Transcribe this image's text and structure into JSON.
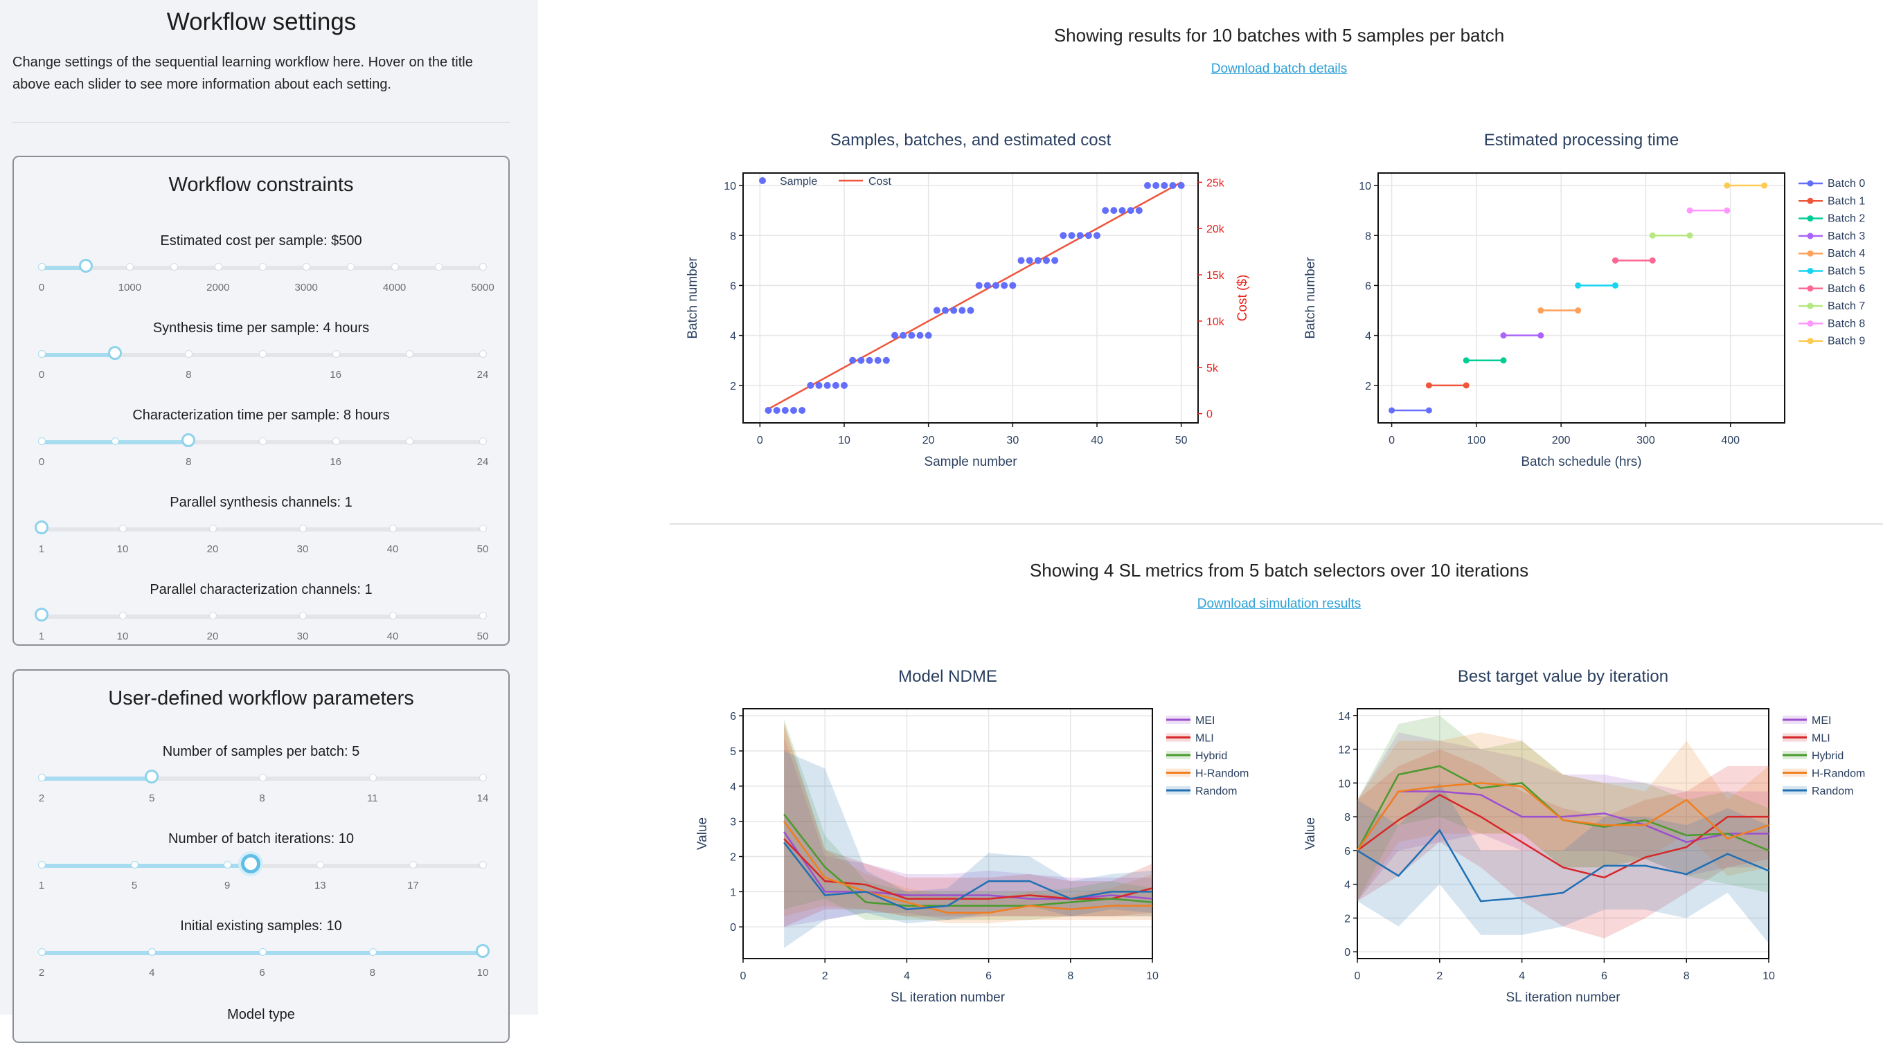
{
  "sidebar": {
    "title": "Workflow settings",
    "intro": "Change settings of the sequential learning workflow here. Hover on the title above each slider to see more information about each setting.",
    "constraints": {
      "title": "Workflow constraints",
      "sliders": [
        {
          "label": "Estimated cost per sample: $500",
          "min": 0,
          "max": 5000,
          "value": 500,
          "marks": [
            "0",
            "1000",
            "2000",
            "3000",
            "4000",
            "5000"
          ],
          "dots": 11
        },
        {
          "label": "Synthesis time per sample: 4 hours",
          "min": 0,
          "max": 24,
          "value": 4,
          "marks": [
            "0",
            "8",
            "16",
            "24"
          ],
          "dots": 7
        },
        {
          "label": "Characterization time per sample: 8 hours",
          "min": 0,
          "max": 24,
          "value": 8,
          "marks": [
            "0",
            "8",
            "16",
            "24"
          ],
          "dots": 7
        },
        {
          "label": "Parallel synthesis channels: 1",
          "min": 1,
          "max": 50,
          "value": 1,
          "marks": [
            "1",
            "10",
            "20",
            "30",
            "40",
            "50"
          ],
          "dots": 6,
          "markvals": [
            1,
            10,
            20,
            30,
            40,
            50
          ]
        },
        {
          "label": "Parallel characterization channels: 1",
          "min": 1,
          "max": 50,
          "value": 1,
          "marks": [
            "1",
            "10",
            "20",
            "30",
            "40",
            "50"
          ],
          "dots": 6,
          "markvals": [
            1,
            10,
            20,
            30,
            40,
            50
          ]
        }
      ]
    },
    "params": {
      "title": "User-defined workflow parameters",
      "sliders": [
        {
          "label": "Number of samples per batch: 5",
          "min": 2,
          "max": 14,
          "value": 5,
          "marks": [
            "2",
            "5",
            "8",
            "11",
            "14"
          ],
          "dots": 5
        },
        {
          "label": "Number of batch iterations: 10",
          "min": 1,
          "max": 20,
          "value": 10,
          "marks": [
            "1",
            "5",
            "9",
            "13",
            "17"
          ],
          "markvals": [
            1,
            5,
            9,
            13,
            17
          ],
          "dotvals": [
            1,
            5,
            9,
            13,
            17,
            20
          ],
          "active": true
        },
        {
          "label": "Initial existing samples: 10",
          "min": 2,
          "max": 10,
          "value": 10,
          "marks": [
            "2",
            "4",
            "6",
            "8",
            "10"
          ],
          "dots": 5
        }
      ],
      "next_label": "Model type"
    }
  },
  "main": {
    "batch_heading": "Showing results for 10 batches with 5 samples per batch",
    "batch_link": "Download batch details",
    "sl_heading": "Showing 4 SL metrics from 5 batch selectors over 10 iterations",
    "sl_link": "Download simulation results"
  },
  "chart_data": [
    {
      "type": "scatter",
      "title": "Samples, batches, and estimated cost",
      "xlabel": "Sample number",
      "ylabel": "Batch number",
      "y2label": "Cost ($)",
      "xlim": [
        -2,
        52
      ],
      "ylim": [
        0.5,
        10.5
      ],
      "y2lim": [
        -1000,
        26000
      ],
      "xticks": [
        0,
        10,
        20,
        30,
        40,
        50
      ],
      "yticks": [
        2,
        4,
        6,
        8,
        10
      ],
      "y2ticks": [
        0,
        5000,
        10000,
        15000,
        20000,
        25000
      ],
      "y2ticklabels": [
        "0",
        "5k",
        "10k",
        "15k",
        "20k",
        "25k"
      ],
      "legend_position": "top-left",
      "series": [
        {
          "name": "Sample",
          "color": "#636efa",
          "kind": "markers",
          "x": [
            1,
            2,
            3,
            4,
            5,
            6,
            7,
            8,
            9,
            10,
            11,
            12,
            13,
            14,
            15,
            16,
            17,
            18,
            19,
            20,
            21,
            22,
            23,
            24,
            25,
            26,
            27,
            28,
            29,
            30,
            31,
            32,
            33,
            34,
            35,
            36,
            37,
            38,
            39,
            40,
            41,
            42,
            43,
            44,
            45,
            46,
            47,
            48,
            49,
            50
          ],
          "y": [
            1,
            1,
            1,
            1,
            1,
            2,
            2,
            2,
            2,
            2,
            3,
            3,
            3,
            3,
            3,
            4,
            4,
            4,
            4,
            4,
            5,
            5,
            5,
            5,
            5,
            6,
            6,
            6,
            6,
            6,
            7,
            7,
            7,
            7,
            7,
            8,
            8,
            8,
            8,
            8,
            9,
            9,
            9,
            9,
            9,
            10,
            10,
            10,
            10,
            10
          ]
        },
        {
          "name": "Cost",
          "color": "#ef553b",
          "kind": "line",
          "axis": "y2",
          "x": [
            1,
            50
          ],
          "y": [
            500,
            25000
          ]
        }
      ]
    },
    {
      "type": "line",
      "title": "Estimated processing time",
      "xlabel": "Batch schedule (hrs)",
      "ylabel": "Batch number",
      "xlim": [
        -16,
        464
      ],
      "ylim": [
        0.5,
        10.5
      ],
      "xticks": [
        0,
        100,
        200,
        300,
        400
      ],
      "yticks": [
        2,
        4,
        6,
        8,
        10
      ],
      "legend_position": "right",
      "series": [
        {
          "name": "Batch 0",
          "color": "#636efa",
          "x": [
            0,
            44
          ],
          "y": [
            1,
            1
          ]
        },
        {
          "name": "Batch 1",
          "color": "#ef553b",
          "x": [
            44,
            88
          ],
          "y": [
            2,
            2
          ]
        },
        {
          "name": "Batch 2",
          "color": "#00cc96",
          "x": [
            88,
            132
          ],
          "y": [
            3,
            3
          ]
        },
        {
          "name": "Batch 3",
          "color": "#ab63fa",
          "x": [
            132,
            176
          ],
          "y": [
            4,
            4
          ]
        },
        {
          "name": "Batch 4",
          "color": "#ffa15a",
          "x": [
            176,
            220
          ],
          "y": [
            5,
            5
          ]
        },
        {
          "name": "Batch 5",
          "color": "#19d3f3",
          "x": [
            220,
            264
          ],
          "y": [
            6,
            6
          ]
        },
        {
          "name": "Batch 6",
          "color": "#ff6692",
          "x": [
            264,
            308
          ],
          "y": [
            7,
            7
          ]
        },
        {
          "name": "Batch 7",
          "color": "#b6e880",
          "x": [
            308,
            352
          ],
          "y": [
            8,
            8
          ]
        },
        {
          "name": "Batch 8",
          "color": "#ff97ff",
          "x": [
            352,
            396
          ],
          "y": [
            9,
            9
          ]
        },
        {
          "name": "Batch 9",
          "color": "#fecb52",
          "x": [
            396,
            440
          ],
          "y": [
            10,
            10
          ]
        }
      ]
    },
    {
      "type": "line",
      "title": "Model NDME",
      "xlabel": "SL iteration number",
      "ylabel": "Value",
      "xlim": [
        0,
        10
      ],
      "ylim": [
        -0.9,
        6.2
      ],
      "xticks": [
        0,
        2,
        4,
        6,
        8,
        10
      ],
      "yticks": [
        0,
        1,
        2,
        3,
        4,
        5,
        6
      ],
      "legend_position": "right",
      "x": [
        1,
        2,
        3,
        4,
        5,
        6,
        7,
        8,
        9,
        10
      ],
      "series": [
        {
          "name": "MEI",
          "color": "#9c4fcf",
          "values": [
            2.7,
            1.0,
            1.0,
            0.9,
            0.9,
            0.9,
            0.8,
            0.8,
            0.9,
            0.8
          ],
          "lower": [
            0.0,
            0.2,
            0.4,
            0.4,
            0.2,
            0.3,
            0.3,
            0.3,
            0.3,
            0.3
          ],
          "upper": [
            5.4,
            2.0,
            1.8,
            1.5,
            1.5,
            1.6,
            1.5,
            1.4,
            1.4,
            1.4
          ]
        },
        {
          "name": "MLI",
          "color": "#d62728",
          "values": [
            2.5,
            1.3,
            1.2,
            0.8,
            0.8,
            0.8,
            0.9,
            0.8,
            0.8,
            1.1
          ],
          "lower": [
            0.0,
            0.5,
            0.5,
            0.3,
            0.3,
            0.3,
            0.3,
            0.3,
            0.3,
            0.4
          ],
          "upper": [
            5.8,
            2.2,
            1.8,
            1.4,
            1.4,
            1.4,
            1.5,
            1.3,
            1.3,
            1.8
          ]
        },
        {
          "name": "Hybrid",
          "color": "#4a9a2e",
          "values": [
            3.2,
            1.7,
            0.7,
            0.6,
            0.6,
            0.6,
            0.6,
            0.7,
            0.8,
            0.7
          ],
          "lower": [
            0.5,
            0.8,
            0.2,
            0.2,
            0.2,
            0.2,
            0.2,
            0.3,
            0.3,
            0.3
          ],
          "upper": [
            5.9,
            2.6,
            1.3,
            1.0,
            1.0,
            1.0,
            1.0,
            1.1,
            1.3,
            1.1
          ]
        },
        {
          "name": "H-Random",
          "color": "#f07f1f",
          "values": [
            3.0,
            1.4,
            1.0,
            0.7,
            0.4,
            0.4,
            0.6,
            0.5,
            0.6,
            0.6
          ],
          "lower": [
            0.3,
            0.6,
            0.5,
            0.3,
            0.1,
            0.1,
            0.2,
            0.2,
            0.2,
            0.2
          ],
          "upper": [
            5.7,
            2.2,
            1.5,
            1.1,
            0.9,
            0.8,
            1.0,
            0.9,
            1.1,
            1.5
          ]
        },
        {
          "name": "Random",
          "color": "#1f6fb4",
          "values": [
            2.4,
            0.9,
            1.0,
            0.5,
            0.6,
            1.3,
            1.3,
            0.8,
            1.0,
            1.0
          ],
          "lower": [
            -0.6,
            0.2,
            0.4,
            0.1,
            0.2,
            0.4,
            0.6,
            0.3,
            0.5,
            0.4
          ],
          "upper": [
            5.0,
            4.5,
            1.6,
            1.0,
            1.1,
            2.1,
            2.0,
            1.3,
            1.5,
            1.6
          ]
        }
      ]
    },
    {
      "type": "line",
      "title": "Best target value by iteration",
      "xlabel": "SL iteration number",
      "ylabel": "Value",
      "xlim": [
        0,
        10
      ],
      "ylim": [
        -0.4,
        14.4
      ],
      "xticks": [
        0,
        2,
        4,
        6,
        8,
        10
      ],
      "yticks": [
        0,
        2,
        4,
        6,
        8,
        10,
        12,
        14
      ],
      "legend_position": "right",
      "x": [
        0,
        1,
        2,
        3,
        4,
        5,
        6,
        7,
        8,
        9,
        10
      ],
      "series": [
        {
          "name": "MEI",
          "color": "#9c4fcf",
          "values": [
            6.0,
            9.5,
            9.5,
            9.3,
            8.0,
            8.0,
            8.2,
            7.5,
            6.5,
            7.0,
            7.0
          ],
          "lower": [
            3.0,
            6.0,
            6.5,
            7.0,
            6.0,
            6.0,
            6.0,
            5.5,
            4.5,
            5.0,
            5.0
          ],
          "upper": [
            9.0,
            13.0,
            12.5,
            12.0,
            11.5,
            10.5,
            10.5,
            10.0,
            9.5,
            9.5,
            9.5
          ]
        },
        {
          "name": "MLI",
          "color": "#d62728",
          "values": [
            6.0,
            7.8,
            9.3,
            8.0,
            6.5,
            5.0,
            4.4,
            5.6,
            6.2,
            8.0,
            8.0
          ],
          "lower": [
            3.0,
            4.5,
            6.5,
            5.0,
            3.0,
            1.5,
            0.8,
            2.0,
            3.5,
            5.0,
            5.5
          ],
          "upper": [
            9.0,
            11.0,
            12.0,
            11.0,
            9.5,
            8.5,
            8.0,
            9.0,
            9.5,
            11.0,
            11.0
          ]
        },
        {
          "name": "Hybrid",
          "color": "#4a9a2e",
          "values": [
            6.0,
            10.5,
            11.0,
            9.7,
            10.0,
            7.8,
            7.4,
            7.8,
            6.9,
            7.0,
            6.0
          ],
          "lower": [
            3.0,
            7.5,
            8.0,
            7.0,
            7.0,
            5.0,
            5.0,
            5.5,
            4.5,
            4.0,
            3.5
          ],
          "upper": [
            9.0,
            13.5,
            14.0,
            12.0,
            12.5,
            10.5,
            10.0,
            10.0,
            9.0,
            9.5,
            8.5
          ]
        },
        {
          "name": "H-Random",
          "color": "#f07f1f",
          "values": [
            6.0,
            9.5,
            9.8,
            10.0,
            9.8,
            7.8,
            7.5,
            7.5,
            9.0,
            6.7,
            7.5
          ],
          "lower": [
            3.0,
            6.5,
            7.0,
            7.0,
            7.0,
            5.0,
            5.0,
            5.5,
            7.0,
            4.5,
            5.0
          ],
          "upper": [
            9.0,
            12.5,
            12.5,
            13.0,
            12.5,
            10.5,
            10.0,
            9.5,
            12.5,
            9.0,
            11.0
          ]
        },
        {
          "name": "Random",
          "color": "#1f6fb4",
          "values": [
            6.0,
            4.5,
            7.2,
            3.0,
            3.2,
            3.5,
            5.1,
            5.1,
            4.6,
            5.8,
            4.8
          ],
          "lower": [
            3.0,
            1.5,
            4.0,
            1.0,
            1.0,
            1.5,
            2.5,
            2.5,
            2.0,
            3.5,
            0.5
          ],
          "upper": [
            9.0,
            7.5,
            10.0,
            6.0,
            6.0,
            6.0,
            8.0,
            8.0,
            7.5,
            8.5,
            7.5
          ]
        }
      ]
    }
  ]
}
